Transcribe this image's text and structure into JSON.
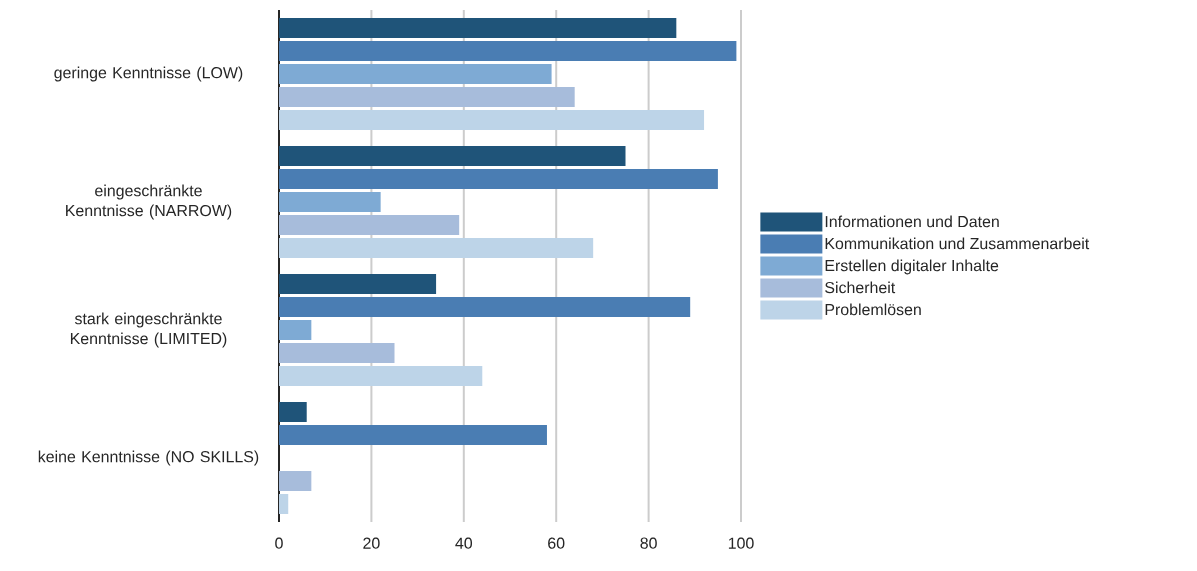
{
  "chart_data": {
    "type": "bar",
    "orientation": "horizontal",
    "categories": [
      "geringe Kenntnisse (LOW)",
      "eingeschränkte Kenntnisse (NARROW)",
      "stark eingeschränkte Kenntnisse (LIMITED)",
      "keine Kenntnisse (NO SKILLS)"
    ],
    "series": [
      {
        "name": "Informationen und Daten",
        "color": "#1f5479",
        "values": [
          86,
          75,
          34,
          6
        ]
      },
      {
        "name": "Kommunikation und Zusammenarbeit",
        "color": "#4a7db3",
        "values": [
          99,
          95,
          89,
          58
        ]
      },
      {
        "name": "Erstellen digitaler Inhalte",
        "color": "#7eaad4",
        "values": [
          59,
          22,
          7,
          null
        ]
      },
      {
        "name": "Sicherheit",
        "color": "#a7bcdb",
        "values": [
          64,
          39,
          25,
          7
        ]
      },
      {
        "name": "Problemlösen",
        "color": "#bdd4e8",
        "values": [
          92,
          68,
          44,
          2
        ]
      }
    ],
    "xlim": [
      0,
      100
    ],
    "xticks": [
      0,
      20,
      40,
      60,
      80,
      100
    ],
    "grid": "x",
    "legend": "right"
  }
}
